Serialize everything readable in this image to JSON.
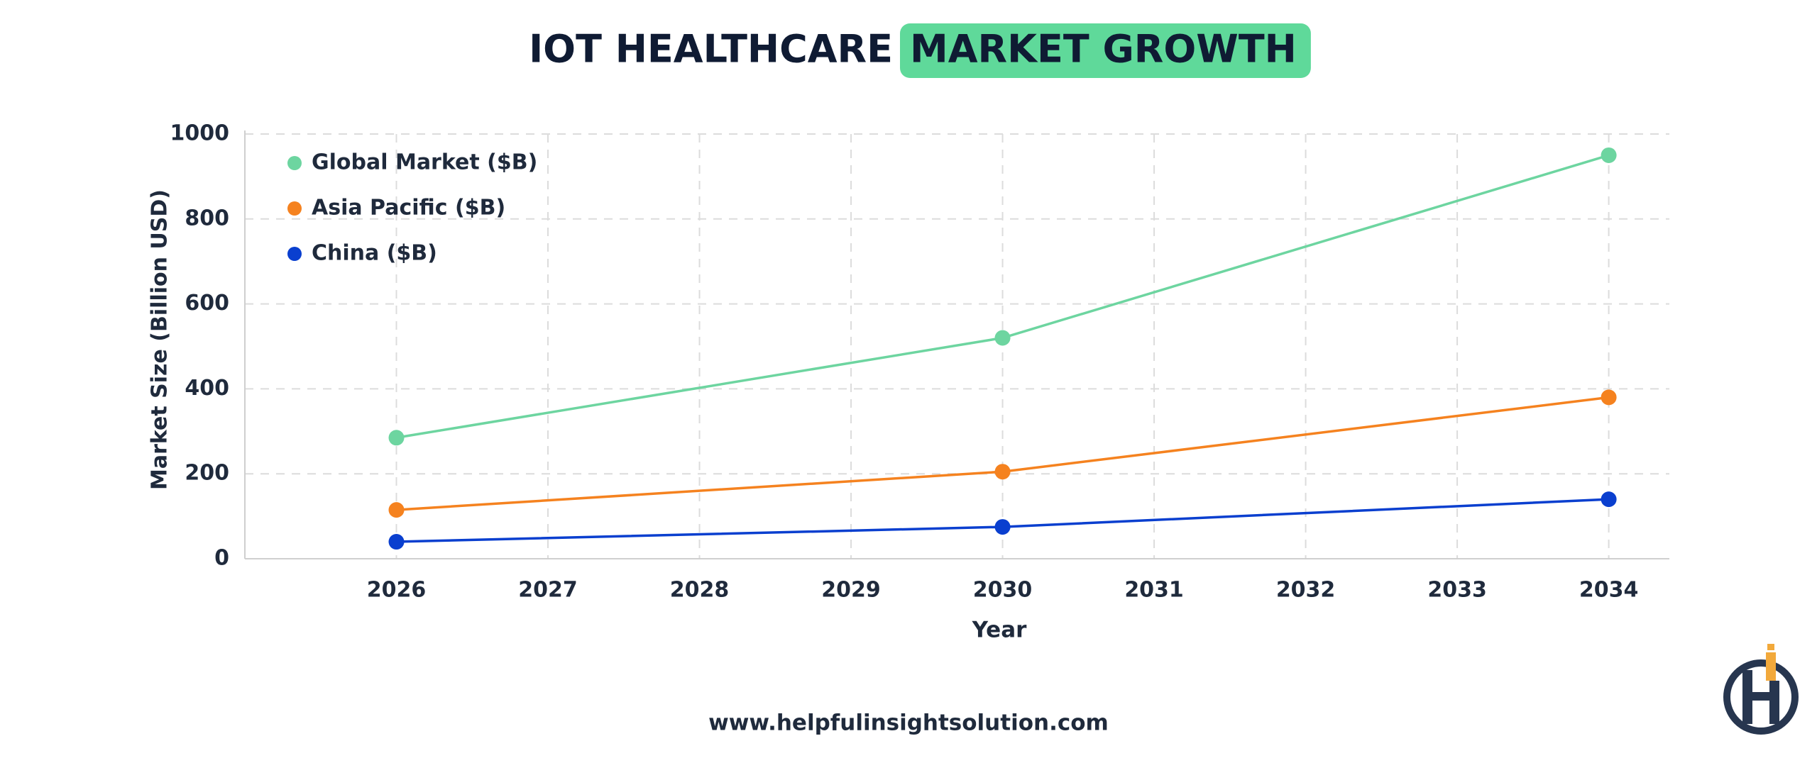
{
  "chart_data": {
    "type": "line",
    "title": "IOT HEALTHCARE",
    "title_highlight": "MARKET GROWTH",
    "x_label": "Year",
    "y_label": "Market Size (Billion USD)",
    "footer": "www.helpfulinsightsolution.com",
    "x": [
      2026,
      2030,
      2034
    ],
    "series": [
      {
        "name": "Global Market ($B)",
        "color": "#6dd5a0",
        "values": [
          285,
          520,
          950
        ]
      },
      {
        "name": "Asia Pacific ($B)",
        "color": "#f5821f",
        "values": [
          115,
          205,
          380
        ]
      },
      {
        "name": "China ($B)",
        "color": "#0a3fcf",
        "values": [
          40,
          75,
          140
        ]
      }
    ],
    "xlim": [
      2025,
      2034.4
    ],
    "xticks": [
      2026,
      2027,
      2028,
      2029,
      2030,
      2031,
      2032,
      2033,
      2034
    ],
    "ylim": [
      0,
      1000
    ],
    "yticks": [
      0,
      200,
      400,
      600,
      800,
      1000
    ],
    "grid": true,
    "legend": "upper left"
  }
}
